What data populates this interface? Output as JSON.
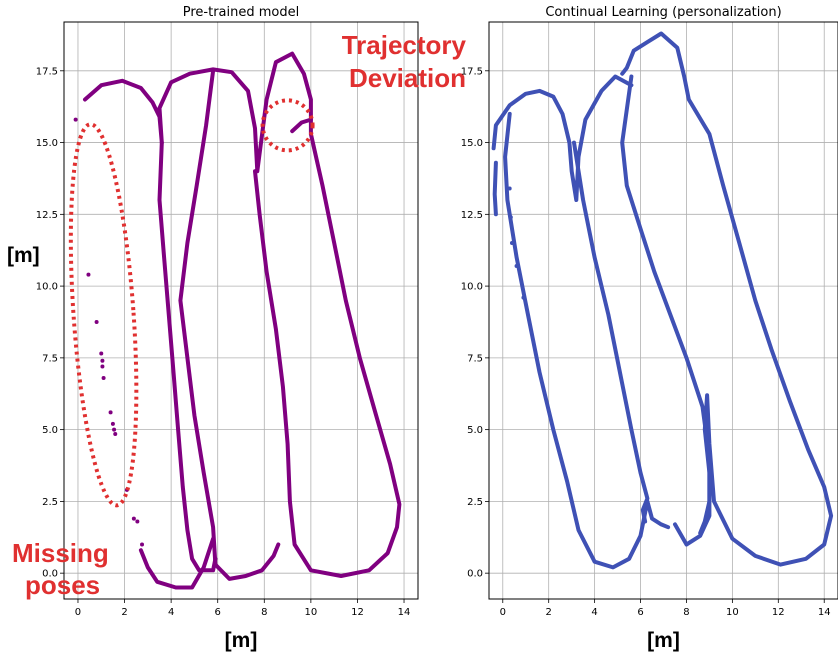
{
  "chart_data": [
    {
      "type": "scatter",
      "title": "Pre-trained model",
      "xlabel": "[m]",
      "ylabel": "[m]",
      "xlim": [
        -0.6,
        14.6
      ],
      "ylim": [
        -0.9,
        19.2
      ],
      "xticks": [
        0,
        2,
        4,
        6,
        8,
        10,
        12,
        14
      ],
      "yticks": [
        0.0,
        2.5,
        5.0,
        7.5,
        10.0,
        12.5,
        15.0,
        17.5
      ],
      "grid": true,
      "color": "#800080",
      "series": [
        {
          "path": [
            [
              0.3,
              16.5
            ],
            [
              1.0,
              17.0
            ],
            [
              1.9,
              17.15
            ],
            [
              2.7,
              16.9
            ],
            [
              3.2,
              16.4
            ],
            [
              3.5,
              15.9
            ],
            [
              3.6,
              15.0
            ],
            [
              3.5,
              16.2
            ],
            [
              4.0,
              17.1
            ],
            [
              4.8,
              17.4
            ],
            [
              5.8,
              17.55
            ],
            [
              6.6,
              17.45
            ],
            [
              7.3,
              16.8
            ],
            [
              7.6,
              15.5
            ],
            [
              7.7,
              14.0
            ],
            [
              8.1,
              16.5
            ],
            [
              8.5,
              17.8
            ],
            [
              9.2,
              18.1
            ],
            [
              9.7,
              17.4
            ],
            [
              10.0,
              16.5
            ],
            [
              10.0,
              15.3
            ],
            [
              10.5,
              13.5
            ],
            [
              11.0,
              11.5
            ],
            [
              11.5,
              9.5
            ],
            [
              12.1,
              7.5
            ],
            [
              12.8,
              5.5
            ],
            [
              13.4,
              3.8
            ],
            [
              13.8,
              2.4
            ],
            [
              13.7,
              1.6
            ],
            [
              13.3,
              0.7
            ],
            [
              12.5,
              0.1
            ],
            [
              11.3,
              -0.1
            ],
            [
              10.0,
              0.1
            ],
            [
              9.3,
              1.0
            ],
            [
              9.1,
              2.5
            ],
            [
              9.0,
              4.5
            ],
            [
              8.8,
              6.5
            ],
            [
              8.5,
              8.5
            ],
            [
              8.1,
              10.5
            ],
            [
              7.8,
              12.5
            ],
            [
              7.6,
              14.0
            ]
          ],
          "path_b": [
            [
              5.8,
              17.5
            ],
            [
              5.5,
              15.6
            ],
            [
              5.1,
              13.5
            ],
            [
              4.7,
              11.5
            ],
            [
              4.4,
              9.5
            ],
            [
              4.7,
              7.5
            ],
            [
              5.0,
              5.5
            ],
            [
              5.4,
              3.5
            ],
            [
              5.8,
              1.6
            ],
            [
              5.9,
              0.3
            ],
            [
              6.5,
              -0.2
            ],
            [
              7.2,
              -0.1
            ],
            [
              7.9,
              0.1
            ],
            [
              8.4,
              0.6
            ],
            [
              8.6,
              1.0
            ]
          ],
          "path_c": [
            [
              3.6,
              15.0
            ],
            [
              3.5,
              13.0
            ],
            [
              3.7,
              11.0
            ],
            [
              3.9,
              9.0
            ],
            [
              4.1,
              7.0
            ],
            [
              4.3,
              5.0
            ],
            [
              4.5,
              3.0
            ],
            [
              4.7,
              1.5
            ],
            [
              4.9,
              0.5
            ],
            [
              5.2,
              0.1
            ],
            [
              5.8,
              0.1
            ],
            [
              5.9,
              0.5
            ]
          ],
          "path_d": [
            [
              2.7,
              0.8
            ],
            [
              3.0,
              0.2
            ],
            [
              3.4,
              -0.3
            ],
            [
              4.2,
              -0.5
            ],
            [
              4.9,
              -0.5
            ],
            [
              5.4,
              0.2
            ],
            [
              5.8,
              1.2
            ]
          ],
          "path_e": [
            [
              9.2,
              15.4
            ],
            [
              9.6,
              15.7
            ],
            [
              10.0,
              15.8
            ]
          ],
          "points": [
            [
              -0.1,
              15.8
            ],
            [
              0.45,
              10.4
            ],
            [
              0.8,
              8.75
            ],
            [
              1.0,
              7.65
            ],
            [
              1.05,
              7.4
            ],
            [
              1.05,
              7.2
            ],
            [
              1.1,
              6.8
            ],
            [
              1.4,
              5.6
            ],
            [
              1.5,
              5.2
            ],
            [
              1.55,
              5.0
            ],
            [
              1.6,
              4.85
            ],
            [
              2.1,
              2.9
            ],
            [
              2.4,
              1.9
            ],
            [
              2.55,
              1.8
            ],
            [
              2.75,
              1.0
            ]
          ]
        }
      ],
      "annotations": [
        {
          "text": "Trajectory",
          "color": "#e03030"
        },
        {
          "text": "Deviation",
          "color": "#e03030"
        },
        {
          "text": "Missing",
          "color": "#e03030"
        },
        {
          "text": "poses",
          "color": "#e03030"
        }
      ]
    },
    {
      "type": "scatter",
      "title": "Continual Learning (personalization)",
      "xlabel": "[m]",
      "ylabel": "",
      "xlim": [
        -0.6,
        14.6
      ],
      "ylim": [
        -0.9,
        19.2
      ],
      "xticks": [
        0,
        2,
        4,
        6,
        8,
        10,
        12,
        14
      ],
      "yticks": [
        0.0,
        2.5,
        5.0,
        7.5,
        10.0,
        12.5,
        15.0,
        17.5
      ],
      "grid": true,
      "color": "#3f51b5",
      "series": [
        {
          "path": [
            [
              -0.4,
              14.8
            ],
            [
              -0.3,
              15.6
            ],
            [
              0.3,
              16.3
            ],
            [
              1.0,
              16.7
            ],
            [
              1.6,
              16.8
            ],
            [
              2.2,
              16.6
            ],
            [
              2.6,
              16.0
            ],
            [
              2.9,
              15.0
            ],
            [
              3.0,
              14.0
            ],
            [
              3.2,
              13.0
            ],
            [
              3.3,
              14.5
            ],
            [
              3.6,
              15.8
            ],
            [
              4.3,
              16.8
            ],
            [
              4.9,
              17.3
            ],
            [
              5.6,
              17.0
            ]
          ],
          "path_b": [
            [
              5.2,
              17.4
            ],
            [
              5.4,
              17.6
            ],
            [
              5.7,
              18.2
            ],
            [
              6.3,
              18.5
            ],
            [
              6.9,
              18.8
            ],
            [
              7.6,
              18.3
            ],
            [
              7.9,
              17.3
            ],
            [
              8.1,
              16.5
            ],
            [
              9.0,
              15.3
            ],
            [
              9.6,
              13.5
            ],
            [
              10.3,
              11.5
            ],
            [
              11.0,
              9.5
            ],
            [
              11.7,
              7.8
            ],
            [
              12.5,
              6.0
            ],
            [
              13.3,
              4.3
            ],
            [
              14.0,
              3.0
            ],
            [
              14.3,
              2.0
            ],
            [
              14.0,
              1.0
            ],
            [
              13.2,
              0.5
            ],
            [
              12.1,
              0.3
            ],
            [
              11.0,
              0.6
            ],
            [
              10.0,
              1.2
            ],
            [
              9.2,
              2.5
            ],
            [
              9.0,
              4.5
            ],
            [
              8.9,
              6.2
            ],
            [
              8.8,
              5.0
            ],
            [
              9.0,
              3.5
            ],
            [
              9.0,
              2.0
            ],
            [
              8.6,
              1.3
            ],
            [
              8.0,
              1.0
            ],
            [
              7.5,
              1.7
            ]
          ],
          "path_c": [
            [
              5.6,
              17.3
            ],
            [
              5.2,
              15.0
            ],
            [
              5.4,
              13.5
            ],
            [
              6.0,
              12.0
            ],
            [
              6.6,
              10.5
            ],
            [
              7.3,
              9.0
            ],
            [
              8.0,
              7.5
            ],
            [
              8.7,
              5.8
            ],
            [
              9.0,
              4.0
            ],
            [
              9.0,
              2.5
            ],
            [
              8.8,
              1.8
            ],
            [
              8.6,
              1.4
            ]
          ],
          "path_d": [
            [
              0.3,
              16.0
            ],
            [
              0.1,
              14.5
            ],
            [
              0.2,
              13.0
            ],
            [
              0.6,
              11.0
            ],
            [
              1.1,
              9.0
            ],
            [
              1.6,
              7.0
            ],
            [
              2.2,
              5.0
            ],
            [
              2.8,
              3.2
            ],
            [
              3.3,
              1.5
            ],
            [
              4.0,
              0.4
            ],
            [
              4.8,
              0.2
            ],
            [
              5.5,
              0.5
            ],
            [
              6.0,
              1.3
            ],
            [
              6.3,
              2.5
            ],
            [
              6.5,
              1.9
            ],
            [
              6.9,
              1.7
            ],
            [
              7.2,
              1.6
            ]
          ],
          "path_e": [
            [
              3.1,
              15.0
            ],
            [
              3.5,
              13.0
            ],
            [
              4.0,
              11.0
            ],
            [
              4.6,
              9.0
            ],
            [
              5.1,
              7.0
            ],
            [
              5.6,
              5.0
            ],
            [
              6.0,
              3.5
            ],
            [
              6.3,
              2.6
            ],
            [
              6.1,
              2.2
            ],
            [
              6.2,
              1.8
            ]
          ],
          "path_f": [
            [
              -0.3,
              14.3
            ],
            [
              -0.35,
              13.2
            ],
            [
              -0.3,
              12.5
            ]
          ],
          "points": [
            [
              0.3,
              13.4
            ],
            [
              0.35,
              12.4
            ],
            [
              0.4,
              11.5
            ],
            [
              0.6,
              10.7
            ],
            [
              0.9,
              9.6
            ]
          ]
        }
      ],
      "annotations": []
    }
  ]
}
